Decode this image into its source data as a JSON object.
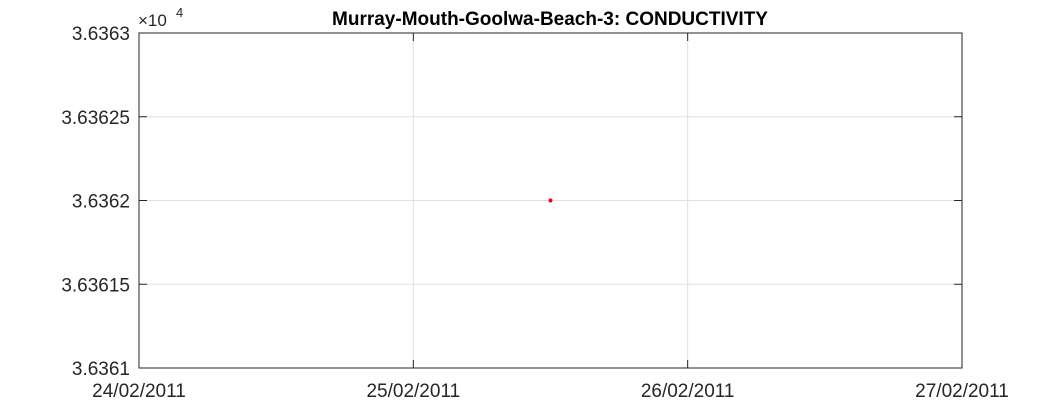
{
  "chart_data": {
    "type": "scatter",
    "title": "Murray-Mouth-Goolwa-Beach-3: CONDUCTIVITY",
    "xlabel": "",
    "ylabel": "",
    "x_tick_labels": [
      "24/02/2011",
      "25/02/2011",
      "26/02/2011",
      "27/02/2011"
    ],
    "xlim": [
      "24/02/2011",
      "27/02/2011"
    ],
    "y_multiplier_label": "×10",
    "y_multiplier_exponent": "4",
    "y_tick_labels": [
      "3.6361",
      "3.63615",
      "3.6362",
      "3.63625",
      "3.6363"
    ],
    "ylim": [
      3.6361,
      3.6363
    ],
    "grid": true,
    "legend": "none",
    "series": [
      {
        "color": "#ff0000",
        "points": [
          {
            "x": "25/02/2011 12:00",
            "y": 3.6362
          }
        ]
      }
    ]
  }
}
